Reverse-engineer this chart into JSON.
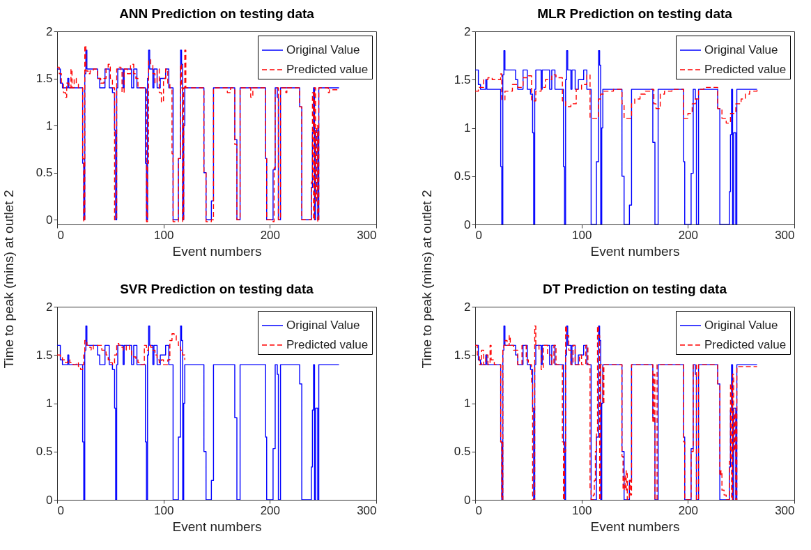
{
  "chart_data": [
    {
      "type": "step",
      "title": "ANN Prediction on testing data",
      "xlabel": "Event numbers",
      "ylabel": "Time to peak (mins) at outlet 2",
      "xlim": [
        0,
        300
      ],
      "ylim": [
        -0.05,
        2
      ],
      "xticks": [
        0,
        100,
        200,
        300
      ],
      "yticks": [
        0,
        0.5,
        1,
        1.5,
        2
      ],
      "legend": "top right",
      "series": [
        {
          "name": "Original Value",
          "color": "#0000ff",
          "line_style": "solid",
          "x": [
            0,
            3,
            5,
            10,
            11,
            24,
            25,
            26,
            27,
            28,
            38,
            40,
            45,
            49,
            52,
            54,
            55,
            56,
            57,
            62,
            63,
            70,
            72,
            75,
            83,
            84,
            85,
            86,
            87,
            90,
            91,
            94,
            97,
            102,
            105,
            109,
            114,
            116,
            117,
            118,
            119,
            120,
            138,
            140,
            145,
            147,
            167,
            169,
            172,
            196,
            197,
            203,
            205,
            207,
            208,
            210,
            228,
            230,
            239,
            240,
            241,
            242,
            243,
            245,
            246,
            265
          ],
          "values": [
            1.6,
            1.45,
            1.4,
            1.5,
            1.4,
            0.6,
            0,
            1.55,
            1.8,
            1.6,
            1.5,
            1.4,
            1.6,
            1.4,
            1.35,
            0.95,
            0,
            1.4,
            1.6,
            1.4,
            1.6,
            1.4,
            1.6,
            1.4,
            0.6,
            0,
            1.5,
            1.8,
            1.6,
            1.4,
            1.6,
            1.4,
            1.5,
            1.6,
            1.4,
            0,
            0.65,
            1.8,
            1.65,
            0,
            1.0,
            1.4,
            0.5,
            0,
            0.2,
            1.4,
            0.85,
            0,
            1.4,
            0.65,
            0,
            0.53,
            1.4,
            1.3,
            0,
            1.4,
            1.2,
            0,
            0.34,
            0.93,
            1.4,
            0,
            0.95,
            0,
            1.4,
            1.4
          ]
        },
        {
          "name": "Predicted value",
          "color": "#ff0000",
          "line_style": "dashed",
          "x": [
            0,
            2,
            4,
            6,
            8,
            9,
            11,
            13,
            14,
            16,
            18,
            20,
            24,
            25,
            26,
            27,
            29,
            31,
            34,
            38,
            41,
            44,
            46,
            48,
            50,
            52,
            54,
            56,
            58,
            60,
            61,
            63,
            66,
            69,
            72,
            74,
            76,
            82,
            84,
            85,
            86,
            88,
            90,
            92,
            94,
            96,
            98,
            100,
            102,
            104,
            106,
            108,
            109,
            113,
            114,
            116,
            117,
            118,
            119,
            120,
            121,
            138,
            140,
            145,
            147,
            160,
            163,
            167,
            169,
            172,
            182,
            184,
            196,
            197,
            203,
            204,
            205,
            208,
            210,
            215,
            216,
            228,
            230,
            239,
            240,
            241,
            242,
            243,
            244,
            245,
            246,
            255,
            256,
            265
          ],
          "values": [
            1.62,
            1.55,
            1.45,
            1.35,
            1.3,
            1.45,
            1.4,
            1.6,
            1.4,
            1.5,
            1.45,
            1.4,
            0.65,
            -0.02,
            1.85,
            1.58,
            1.55,
            1.58,
            1.6,
            1.5,
            1.45,
            1.5,
            1.62,
            1.65,
            1.5,
            1.4,
            0,
            1.6,
            1.62,
            1.58,
            1.35,
            1.6,
            1.55,
            1.65,
            1.55,
            1.5,
            1.4,
            1.4,
            -0.02,
            0.6,
            1.7,
            1.65,
            1.55,
            1.45,
            1.6,
            1.35,
            1.25,
            1.5,
            1.6,
            1.45,
            1.4,
            0.7,
            -0.02,
            -0.02,
            0.65,
            1.65,
            1.4,
            -0.02,
            1.4,
            1.8,
            1.4,
            0.5,
            -0.02,
            0,
            1.4,
            1.35,
            1.4,
            0.8,
            0,
            1.4,
            1.3,
            1.4,
            0.65,
            0,
            -0.02,
            0.55,
            1.4,
            0,
            1.4,
            1.35,
            1.4,
            1.2,
            0,
            0.4,
            1.35,
            0,
            1.4,
            0.2,
            1.0,
            -0.02,
            1.4,
            1.35,
            1.38,
            1.38
          ]
        }
      ]
    },
    {
      "type": "step",
      "title": "MLR Prediction on testing data",
      "xlabel": "Event numbers",
      "ylabel": "Time to peak (mins)  at outlet 2",
      "xlim": [
        0,
        300
      ],
      "ylim": [
        0,
        2
      ],
      "xticks": [
        0,
        100,
        200,
        300
      ],
      "yticks": [
        0,
        0.5,
        1,
        1.5,
        2
      ],
      "legend": "top right",
      "series": [
        {
          "name": "Original Value",
          "color": "#0000ff",
          "line_style": "solid",
          "x": [
            0,
            3,
            5,
            10,
            11,
            24,
            25,
            26,
            27,
            28,
            38,
            40,
            45,
            49,
            52,
            54,
            55,
            56,
            57,
            62,
            63,
            70,
            72,
            75,
            83,
            84,
            85,
            86,
            87,
            90,
            91,
            94,
            97,
            102,
            105,
            109,
            114,
            116,
            117,
            118,
            119,
            120,
            138,
            140,
            145,
            147,
            167,
            169,
            172,
            196,
            197,
            203,
            205,
            207,
            208,
            210,
            228,
            230,
            239,
            240,
            241,
            242,
            243,
            245,
            246,
            265
          ],
          "values": [
            1.6,
            1.45,
            1.4,
            1.5,
            1.4,
            0.6,
            0,
            1.55,
            1.8,
            1.6,
            1.5,
            1.4,
            1.6,
            1.4,
            1.35,
            0.95,
            0,
            1.4,
            1.6,
            1.4,
            1.6,
            1.4,
            1.6,
            1.4,
            0.6,
            0,
            1.5,
            1.8,
            1.6,
            1.4,
            1.6,
            1.4,
            1.5,
            1.6,
            1.4,
            0,
            0.65,
            1.8,
            1.65,
            0,
            1.0,
            1.4,
            0.5,
            0,
            0.2,
            1.4,
            0.85,
            0,
            1.4,
            0.65,
            0,
            0.53,
            1.4,
            1.3,
            0,
            1.4,
            1.2,
            0,
            0.34,
            0.93,
            1.4,
            0,
            0.95,
            0,
            1.4,
            1.4
          ]
        },
        {
          "name": "Predicted value",
          "color": "#ff0000",
          "line_style": "dashed",
          "x": [
            0,
            3,
            8,
            12,
            16,
            24,
            25,
            28,
            35,
            40,
            45,
            50,
            53,
            57,
            62,
            66,
            72,
            76,
            82,
            85,
            90,
            95,
            100,
            105,
            108,
            112,
            116,
            118,
            121,
            130,
            138,
            140,
            145,
            147,
            150,
            155,
            160,
            166,
            168,
            170,
            174,
            178,
            185,
            196,
            200,
            204,
            207,
            210,
            215,
            228,
            232,
            236,
            240,
            245,
            250,
            254,
            258,
            265
          ],
          "values": [
            1.38,
            1.42,
            1.5,
            1.52,
            1.5,
            1.56,
            1.29,
            1.38,
            1.45,
            1.42,
            1.52,
            1.54,
            1.28,
            1.38,
            1.42,
            1.5,
            1.55,
            1.52,
            1.28,
            1.22,
            1.25,
            1.4,
            1.45,
            1.55,
            1.1,
            1.1,
            1.3,
            1.35,
            1.38,
            1.4,
            1.25,
            1.1,
            1.1,
            1.25,
            1.3,
            1.35,
            1.38,
            1.4,
            1.25,
            1.2,
            1.35,
            1.38,
            1.4,
            1.1,
            1.15,
            1.25,
            1.3,
            1.4,
            1.42,
            1.2,
            1.1,
            1.05,
            1.15,
            1.25,
            1.3,
            1.35,
            1.38,
            1.4
          ]
        }
      ]
    },
    {
      "type": "step",
      "title": "SVR Prediction on testing data",
      "xlabel": "Event numbers",
      "xlim": [
        0,
        300
      ],
      "ylim": [
        0,
        2
      ],
      "xticks": [
        0,
        100,
        200,
        300
      ],
      "yticks": [
        0,
        0.5,
        1,
        1.5,
        2
      ],
      "legend": "top right",
      "series": [
        {
          "name": "Original Value",
          "color": "#0000ff",
          "line_style": "solid",
          "x": [
            0,
            3,
            5,
            10,
            11,
            24,
            25,
            26,
            27,
            28,
            38,
            40,
            45,
            49,
            52,
            54,
            55,
            56,
            57,
            62,
            63,
            70,
            72,
            75,
            83,
            84,
            85,
            86,
            87,
            90,
            91,
            94,
            97,
            102,
            105,
            109,
            114,
            116,
            117,
            118,
            119,
            120,
            138,
            140,
            145,
            147,
            167,
            169,
            172,
            196,
            197,
            203,
            205,
            207,
            208,
            210,
            228,
            230,
            239,
            240,
            241,
            242,
            243,
            245,
            246,
            265
          ],
          "values": [
            1.6,
            1.45,
            1.4,
            1.5,
            1.4,
            0.6,
            0,
            1.55,
            1.8,
            1.6,
            1.5,
            1.4,
            1.6,
            1.4,
            1.35,
            0.95,
            0,
            1.4,
            1.6,
            1.4,
            1.6,
            1.4,
            1.6,
            1.4,
            0.6,
            0,
            1.5,
            1.8,
            1.6,
            1.4,
            1.6,
            1.4,
            1.5,
            1.6,
            1.4,
            0,
            0.65,
            1.8,
            1.65,
            0,
            1.0,
            1.4,
            0.5,
            0,
            0.2,
            1.4,
            0.85,
            0,
            1.4,
            0.65,
            0,
            0.53,
            1.4,
            1.3,
            0,
            1.4,
            1.2,
            0,
            0.34,
            0.93,
            1.4,
            0,
            0.95,
            0,
            1.4,
            1.4
          ]
        },
        {
          "name": "Predicted value",
          "color": "#ff0000",
          "line_style": "dashed",
          "x": [
            0,
            3,
            5,
            8,
            10,
            12,
            15,
            18,
            20,
            22,
            24,
            25,
            26,
            28,
            30,
            32,
            34,
            38,
            42,
            46,
            48,
            50,
            52,
            54,
            56,
            58,
            60,
            62,
            65,
            68,
            70,
            72,
            74,
            76,
            78,
            82,
            84,
            86,
            88,
            90,
            92,
            94,
            96,
            98,
            100,
            104,
            106,
            108,
            110,
            112,
            114,
            116,
            118,
            120
          ],
          "values": [
            1.5,
            1.48,
            1.45,
            1.42,
            1.45,
            1.42,
            1.4,
            1.42,
            1.38,
            1.35,
            1.4,
            1.5,
            1.65,
            1.6,
            1.58,
            1.55,
            1.6,
            1.6,
            1.55,
            1.5,
            1.45,
            1.42,
            1.4,
            1.5,
            1.62,
            1.6,
            1.58,
            1.55,
            1.6,
            1.55,
            1.5,
            1.48,
            1.45,
            1.42,
            1.4,
            1.6,
            1.55,
            1.6,
            1.58,
            1.55,
            1.5,
            1.45,
            1.42,
            1.45,
            1.4,
            1.45,
            1.65,
            1.72,
            1.7,
            1.65,
            1.6,
            1.55,
            1.5,
            1.45
          ]
        }
      ]
    },
    {
      "type": "step",
      "title": "DT Prediction on testing data",
      "xlabel": "Event numbers",
      "xlim": [
        0,
        300
      ],
      "ylim": [
        0,
        2
      ],
      "xticks": [
        0,
        100,
        200,
        300
      ],
      "yticks": [
        0,
        0.5,
        1,
        1.5,
        2
      ],
      "legend": "top right",
      "series": [
        {
          "name": "Original Value",
          "color": "#0000ff",
          "line_style": "solid",
          "x": [
            0,
            3,
            5,
            10,
            11,
            24,
            25,
            26,
            27,
            28,
            38,
            40,
            45,
            49,
            52,
            54,
            55,
            56,
            57,
            62,
            63,
            70,
            72,
            75,
            83,
            84,
            85,
            86,
            87,
            90,
            91,
            94,
            97,
            102,
            105,
            109,
            114,
            116,
            117,
            118,
            119,
            120,
            138,
            140,
            145,
            147,
            167,
            169,
            172,
            196,
            197,
            203,
            205,
            207,
            208,
            210,
            228,
            230,
            239,
            240,
            241,
            242,
            243,
            245,
            246,
            265
          ],
          "values": [
            1.6,
            1.45,
            1.4,
            1.5,
            1.4,
            0.6,
            0,
            1.55,
            1.8,
            1.6,
            1.5,
            1.4,
            1.6,
            1.4,
            1.35,
            0.95,
            0,
            1.4,
            1.6,
            1.4,
            1.6,
            1.4,
            1.6,
            1.4,
            0.6,
            0,
            1.5,
            1.8,
            1.6,
            1.4,
            1.6,
            1.4,
            1.5,
            1.6,
            1.4,
            0,
            0.65,
            1.8,
            1.65,
            0,
            1.0,
            1.4,
            0.5,
            0,
            0.2,
            1.4,
            0.85,
            0,
            1.4,
            0.65,
            0,
            0.53,
            1.4,
            1.3,
            0,
            1.4,
            1.2,
            0,
            0.34,
            0.93,
            1.4,
            0,
            0.95,
            0,
            1.4,
            1.4
          ]
        },
        {
          "name": "Predicted value",
          "color": "#ff0000",
          "line_style": "dashed",
          "x": [
            0,
            2,
            4,
            6,
            8,
            10,
            12,
            14,
            15,
            18,
            24,
            25,
            26,
            27,
            28,
            30,
            32,
            33,
            36,
            40,
            44,
            48,
            50,
            53,
            54,
            56,
            57,
            60,
            62,
            64,
            68,
            72,
            74,
            76,
            82,
            83,
            84,
            85,
            86,
            88,
            90,
            92,
            94,
            98,
            100,
            104,
            106,
            108,
            109,
            111,
            112,
            113,
            114,
            115,
            116,
            117,
            118,
            120,
            121,
            138,
            139,
            140,
            141,
            142,
            143,
            145,
            146,
            147,
            167,
            168,
            169,
            171,
            196,
            197,
            203,
            205,
            208,
            210,
            228,
            230,
            231,
            232,
            234,
            236,
            239,
            240,
            241,
            242,
            243,
            244,
            245,
            246,
            265
          ],
          "values": [
            1.6,
            1.5,
            1.4,
            1.55,
            1.4,
            1.5,
            1.4,
            1.6,
            1.45,
            1.4,
            0.6,
            0,
            1.55,
            1.6,
            1.65,
            1.6,
            1.7,
            1.6,
            1.55,
            1.4,
            1.6,
            1.45,
            1.4,
            1.2,
            0,
            1.8,
            1.6,
            1.55,
            1.35,
            1.6,
            1.5,
            1.4,
            1.6,
            1.4,
            0.6,
            0,
            0.5,
            1.8,
            1.7,
            1.55,
            1.4,
            1.6,
            1.4,
            1.5,
            1.4,
            1.6,
            1.4,
            0.1,
            0,
            0.05,
            0.2,
            0.5,
            0.7,
            1.8,
            1.7,
            0,
            1.4,
            1.0,
            1.4,
            0.45,
            0.1,
            0.25,
            0.1,
            0.3,
            0,
            0.2,
            0.05,
            1.4,
            0.8,
            1.3,
            0,
            1.4,
            0.6,
            0,
            0.5,
            1.4,
            0,
            1.4,
            1.2,
            0.25,
            0.3,
            0.1,
            0.05,
            0,
            0.4,
            1.2,
            0,
            1.3,
            0.5,
            0.9,
            0,
            1.38,
            1.38
          ]
        }
      ]
    }
  ]
}
